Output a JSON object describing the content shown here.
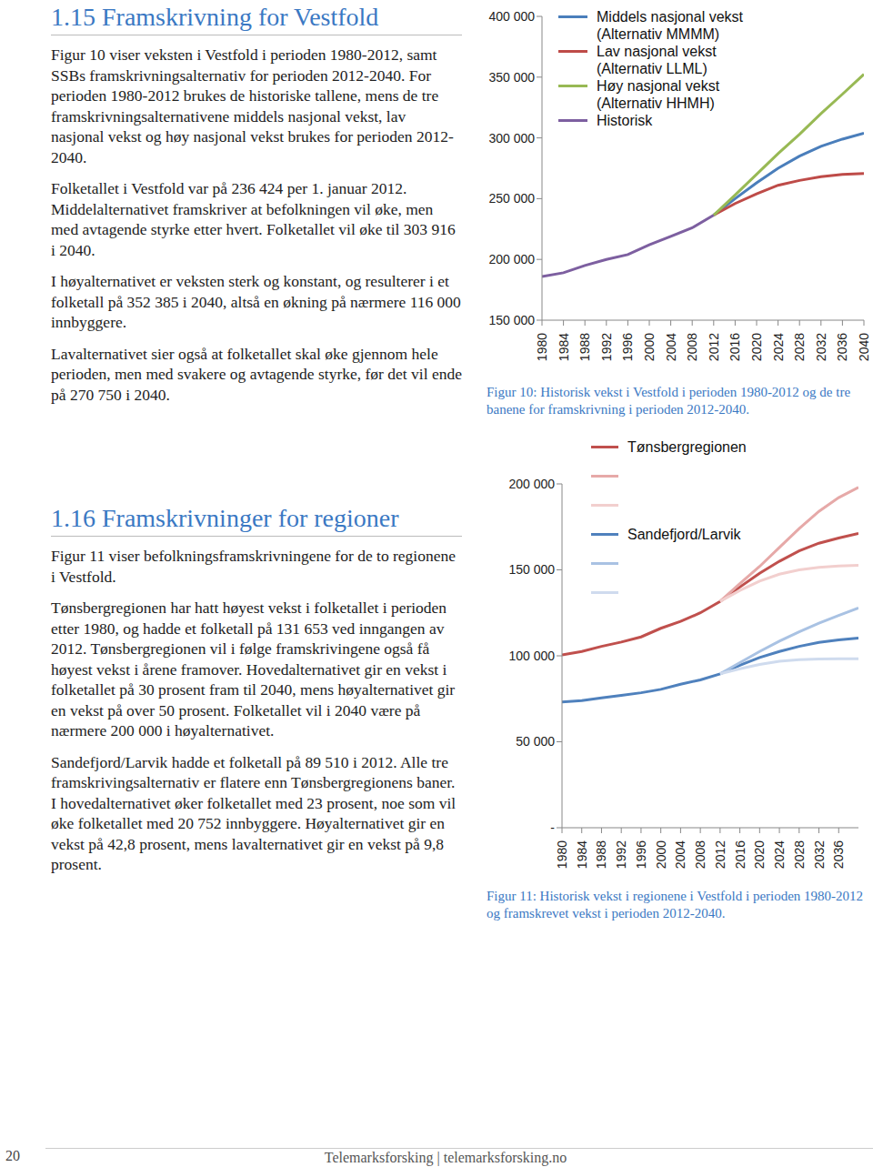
{
  "page": {
    "sections": [
      {
        "heading": "1.15 Framskrivning for Vestfold",
        "paragraphs": [
          "Figur 10 viser veksten i Vestfold i perioden 1980-2012, samt SSBs framskrivningsalternativ for perioden 2012-2040. For perioden 1980-2012 brukes de historiske tallene, mens de tre framskrivningsalternativene middels nasjonal vekst, lav nasjonal vekst og høy nasjonal vekst brukes for perioden 2012-2040.",
          "Folketallet i Vestfold var på 236 424 per 1. januar 2012. Middelalternativet framskriver at befolkningen vil øke, men med avtagende styrke etter hvert. Folketallet vil øke til 303 916 i 2040.",
          "I høyalternativet er veksten sterk og konstant, og resulterer i et folketall på 352 385 i 2040, altså en økning på nærmere 116 000 innbyggere.",
          "Lavalternativet sier også at folketallet skal øke gjennom hele perioden, men med svakere og avtagende styrke, før det vil ende på 270 750 i 2040."
        ]
      },
      {
        "heading": "1.16 Framskrivninger for regioner",
        "paragraphs": [
          "Figur 11 viser befolkningsframskrivningene for de to regionene i Vestfold.",
          "Tønsbergregionen har hatt høyest vekst i folketallet i perioden etter 1980, og hadde et folketall på 131 653 ved inngangen av 2012. Tønsbergregionen vil i følge framskrivingene også få høyest vekst i årene framover. Hovedalternativet gir en vekst i folketallet på 30 prosent fram til 2040, mens høyalternativet gir en vekst på over 50 prosent. Folketallet vil i 2040 være på nærmere 200 000 i høyalternativet.",
          "Sandefjord/Larvik hadde et folketall på 89 510 i 2012. Alle tre framskrivingsalternativ er flatere enn Tønsbergregionens baner. I hovedalternativet øker folketallet med 23 prosent, noe som vil øke folketallet med 20 752 innbyggere. Høyalternativet gir en vekst på 42,8 prosent, mens lavalternativet gir en vekst på 9,8 prosent."
        ]
      }
    ],
    "captions": [
      "Figur 10: Historisk vekst i Vestfold i perioden 1980-2012 og de tre banene for framskrivning i perioden 2012-2040.",
      "Figur 11: Historisk vekst i regionene i Vestfold i perioden 1980-2012 og framskrevet vekst i perioden 2012-2040."
    ],
    "footer": {
      "page_number": 20,
      "text": "Telemarksforsking | telemarksforsking.no"
    }
  },
  "chart_data": [
    {
      "type": "line",
      "x": [
        1980,
        1984,
        1988,
        1992,
        1996,
        2000,
        2004,
        2008,
        2012,
        2016,
        2020,
        2024,
        2028,
        2032,
        2036,
        2040
      ],
      "xlim": [
        1980,
        2040
      ],
      "xticks": [
        1980,
        1984,
        1988,
        1992,
        1996,
        2000,
        2004,
        2008,
        2012,
        2016,
        2020,
        2024,
        2028,
        2032,
        2036,
        2040
      ],
      "ylim": [
        150000,
        400000
      ],
      "yticks": [
        {
          "value": 150000,
          "label": "150 000"
        },
        {
          "value": 200000,
          "label": "200 000"
        },
        {
          "value": 250000,
          "label": "250 000"
        },
        {
          "value": 300000,
          "label": "300 000"
        },
        {
          "value": 350000,
          "label": "350 000"
        },
        {
          "value": 400000,
          "label": "400 000"
        }
      ],
      "grid": false,
      "legend": "upper right",
      "series": [
        {
          "name": "Middels nasjonal vekst (Alternativ MMMM)",
          "color": "#4a7ebb",
          "values": [
            null,
            null,
            null,
            null,
            null,
            null,
            null,
            null,
            236424,
            250000,
            263000,
            275000,
            285000,
            293000,
            299000,
            303916
          ]
        },
        {
          "name": "Lav nasjonal vekst (Alternativ LLML)",
          "color": "#be4b48",
          "values": [
            null,
            null,
            null,
            null,
            null,
            null,
            null,
            null,
            236424,
            246000,
            254000,
            261000,
            265000,
            268000,
            270000,
            270750
          ]
        },
        {
          "name": "Høy nasjonal vekst (Alternativ HHMH)",
          "color": "#98b954",
          "values": [
            null,
            null,
            null,
            null,
            null,
            null,
            null,
            null,
            236424,
            253000,
            270000,
            287000,
            303000,
            320000,
            336000,
            352385
          ]
        },
        {
          "name": "Historisk",
          "color": "#7d5fa0",
          "values": [
            186000,
            189000,
            195000,
            200000,
            204000,
            212000,
            219000,
            226000,
            236424,
            null,
            null,
            null,
            null,
            null,
            null,
            null
          ]
        }
      ]
    },
    {
      "type": "line",
      "x": [
        1980,
        1984,
        1988,
        1992,
        1996,
        2000,
        2004,
        2008,
        2012,
        2016,
        2020,
        2024,
        2028,
        2032,
        2036,
        2040
      ],
      "xlim": [
        1980,
        2040
      ],
      "xticks": [
        1980,
        1984,
        1988,
        1992,
        1996,
        2000,
        2004,
        2008,
        2012,
        2016,
        2020,
        2024,
        2028,
        2032,
        2036
      ],
      "ylim": [
        0,
        200000
      ],
      "yticks": [
        {
          "value": 0,
          "label": "-"
        },
        {
          "value": 50000,
          "label": "50 000"
        },
        {
          "value": 100000,
          "label": "100 000"
        },
        {
          "value": 150000,
          "label": "150 000"
        },
        {
          "value": 200000,
          "label": "200 000"
        }
      ],
      "grid": false,
      "legend": "upper left",
      "series": [
        {
          "name": "Tønsbergregionen",
          "color": "#c0504d",
          "values": [
            100500,
            102500,
            105500,
            108000,
            111000,
            116000,
            120000,
            125000,
            131653,
            140000,
            148000,
            155000,
            161000,
            165500,
            168500,
            171149
          ]
        },
        {
          "color": "#e6a9a8",
          "values": [
            null,
            null,
            null,
            null,
            null,
            null,
            null,
            null,
            131653,
            142000,
            152000,
            163000,
            174000,
            184000,
            192000,
            198000
          ]
        },
        {
          "color": "#f2cfce",
          "values": [
            null,
            null,
            null,
            null,
            null,
            null,
            null,
            null,
            131653,
            138000,
            143500,
            147500,
            150000,
            151500,
            152300,
            152600
          ]
        },
        {
          "name": "Sandefjord/Larvik",
          "color": "#4f81bd",
          "values": [
            73200,
            74000,
            75500,
            77000,
            78500,
            80500,
            83500,
            86000,
            89510,
            94500,
            99000,
            102500,
            105500,
            107800,
            109200,
            110262
          ]
        },
        {
          "color": "#a9c2e3",
          "values": [
            null,
            null,
            null,
            null,
            null,
            null,
            null,
            null,
            89510,
            96000,
            102500,
            108500,
            114000,
            119000,
            123500,
            127820
          ]
        },
        {
          "color": "#cfdbee",
          "values": [
            null,
            null,
            null,
            null,
            null,
            null,
            null,
            null,
            89510,
            92500,
            95000,
            96800,
            97700,
            98100,
            98250,
            98281
          ]
        }
      ]
    }
  ]
}
